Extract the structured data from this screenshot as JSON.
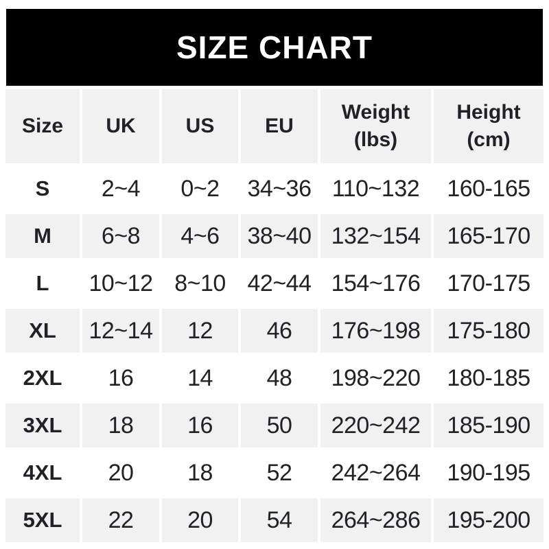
{
  "banner": {
    "title": "SIZE CHART",
    "bg_color": "#000000",
    "text_color": "#ffffff"
  },
  "table": {
    "header": {
      "size": "Size",
      "uk": "UK",
      "us": "US",
      "eu": "EU",
      "weight": "Weight\n(lbs)",
      "height": "Height\n(cm)"
    },
    "colors": {
      "stripe_bg": "#f1f1f2",
      "plain_bg": "#ffffff",
      "text": "#212227"
    }
  },
  "chart_data": {
    "type": "table",
    "title": "SIZE CHART",
    "columns": [
      "Size",
      "UK",
      "US",
      "EU",
      "Weight (lbs)",
      "Height (cm)"
    ],
    "rows": [
      [
        "S",
        "2~4",
        "0~2",
        "34~36",
        "110~132",
        "160-165"
      ],
      [
        "M",
        "6~8",
        "4~6",
        "38~40",
        "132~154",
        "165-170"
      ],
      [
        "L",
        "10~12",
        "8~10",
        "42~44",
        "154~176",
        "170-175"
      ],
      [
        "XL",
        "12~14",
        "12",
        "46",
        "176~198",
        "175-180"
      ],
      [
        "2XL",
        "16",
        "14",
        "48",
        "198~220",
        "180-185"
      ],
      [
        "3XL",
        "18",
        "16",
        "50",
        "220~242",
        "185-190"
      ],
      [
        "4XL",
        "20",
        "18",
        "52",
        "242~264",
        "190-195"
      ],
      [
        "5XL",
        "22",
        "20",
        "54",
        "264~286",
        "195-200"
      ]
    ],
    "layout": {
      "striped_rows": true,
      "stripe_color": "#f1f1f2",
      "header_bg": "#f1f1f2",
      "banner_bg": "#000000"
    }
  }
}
